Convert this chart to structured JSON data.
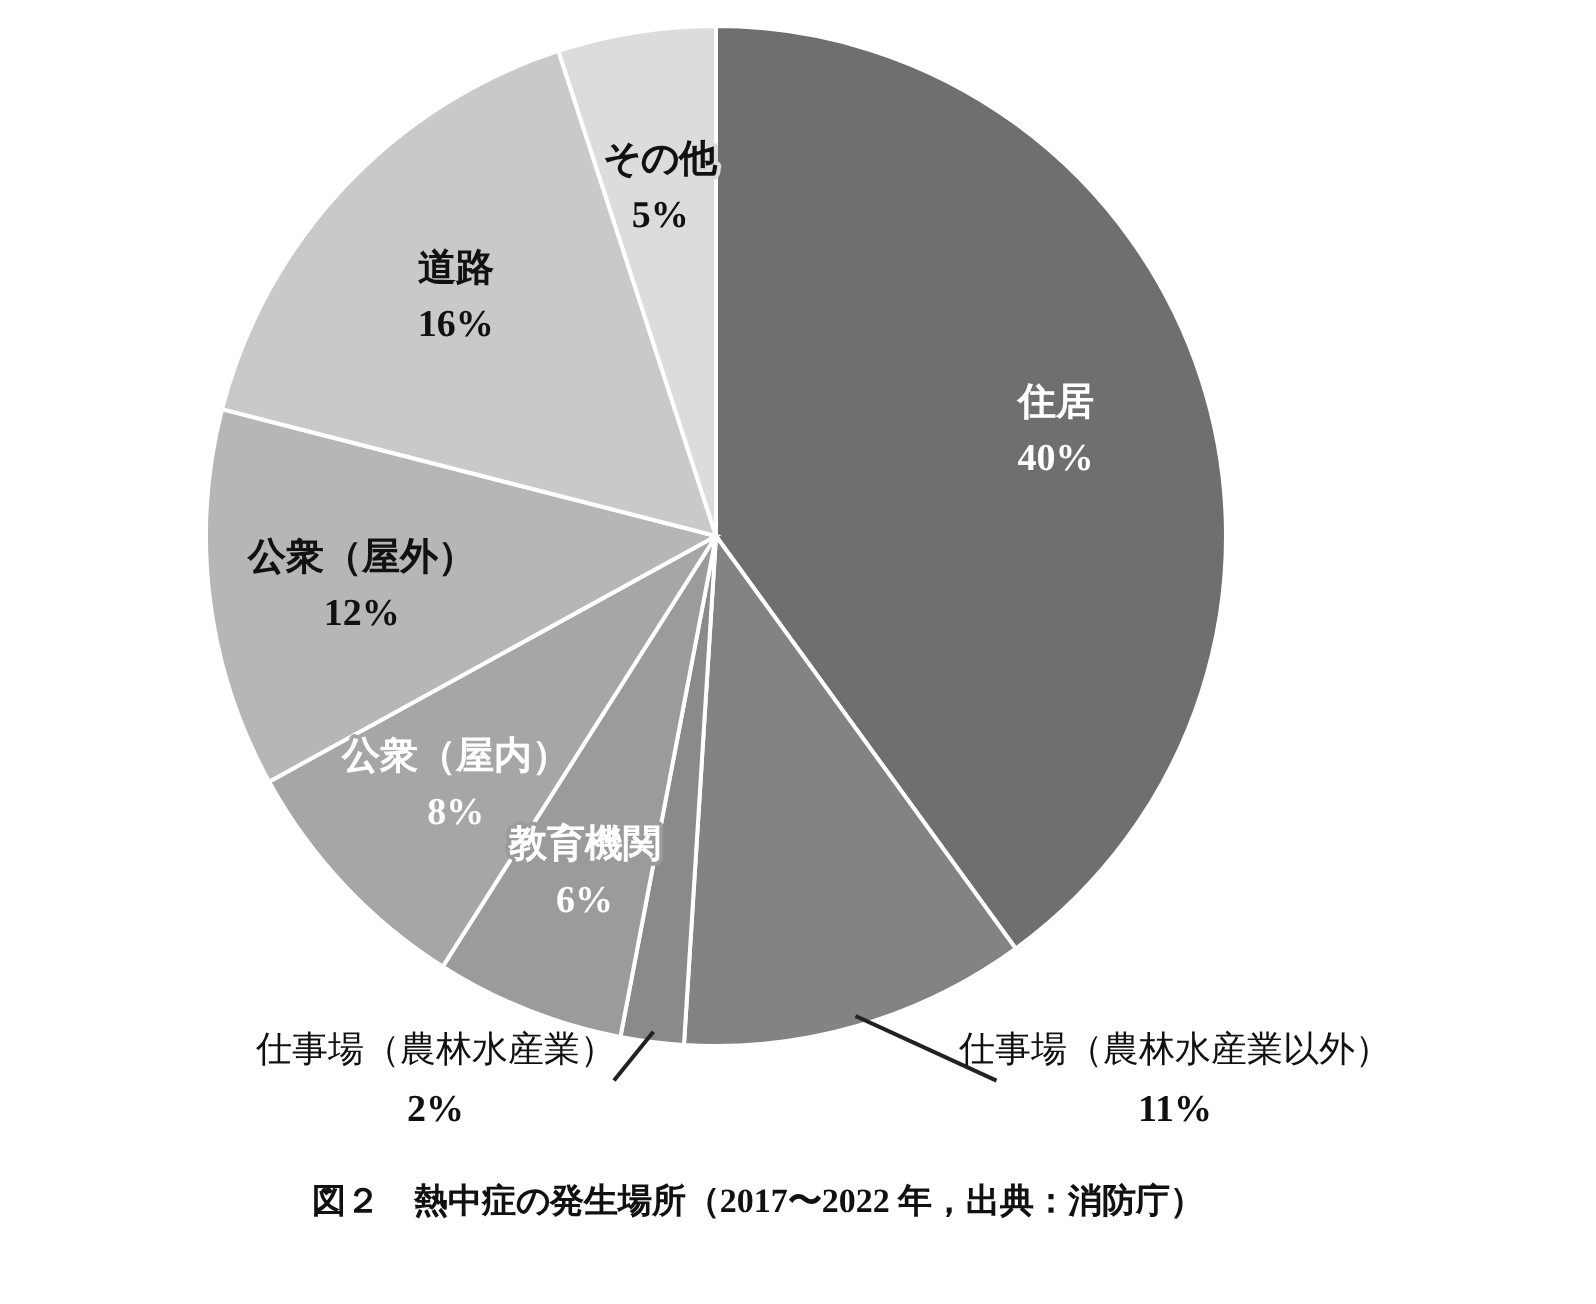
{
  "chart_data": {
    "type": "pie",
    "title": "図２　熱中症の発生場所（2017〜2022 年，出典：消防庁）",
    "categories": [
      "住居",
      "仕事場（農林水産業以外）",
      "仕事場（農林水産業）",
      "教育機関",
      "公衆（屋内）",
      "公衆（屋外）",
      "道路",
      "その他"
    ],
    "values": [
      40,
      11,
      2,
      6,
      8,
      12,
      16,
      5
    ],
    "value_labels": [
      "40%",
      "11%",
      "2%",
      "6%",
      "8%",
      "12%",
      "16%",
      "5%"
    ],
    "colors": [
      "#6f6f6f",
      "#838383",
      "#8a8a8a",
      "#9b9b9b",
      "#a6a6a6",
      "#b6b6b6",
      "#c9c9c9",
      "#dcdcdc"
    ]
  }
}
